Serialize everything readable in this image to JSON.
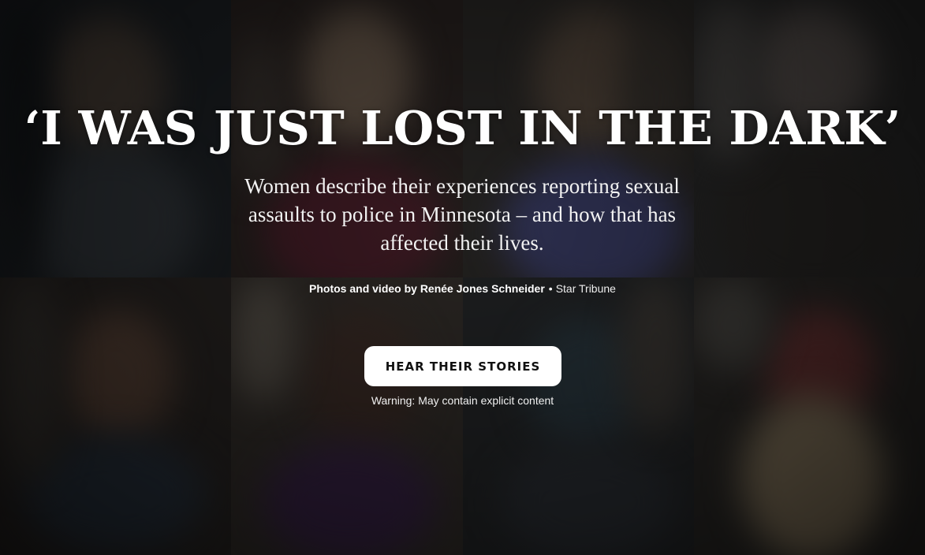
{
  "headline": "‘I WAS JUST LOST IN THE DARK’",
  "dek": "Women describe their experiences reporting sexual assaults to police in Minnesota – and how that has affected their lives.",
  "credit": {
    "name": "Photos and video by Renée Jones Schneider",
    "separator": "•",
    "outlet": "Star Tribune"
  },
  "cta": {
    "label": "HEAR THEIR STORIES"
  },
  "warning": "Warning: May contain explicit content",
  "colors": {
    "background": "#151515",
    "text": "#ffffff",
    "button_bg": "#ffffff",
    "button_text": "#111111"
  }
}
